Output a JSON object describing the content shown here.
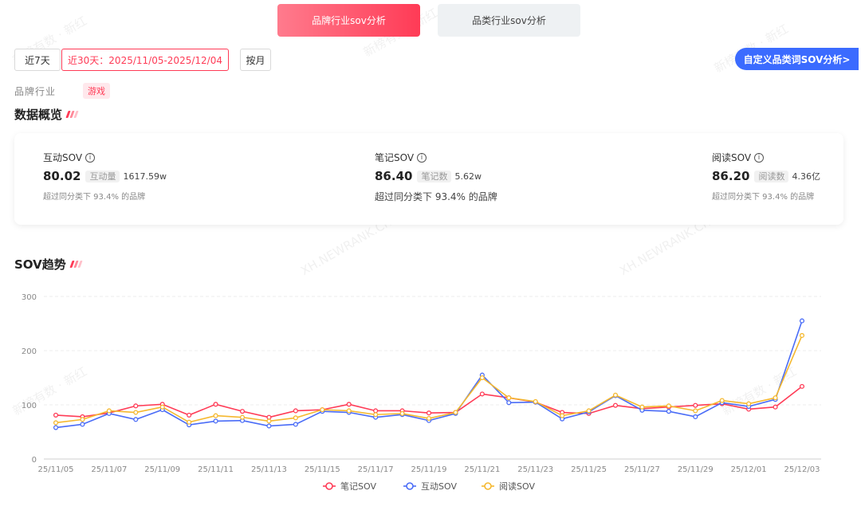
{
  "tabs": {
    "brand": "品牌行业sov分析",
    "category": "品类行业sov分析"
  },
  "date_filters": {
    "last7": "近7天",
    "last30": "近30天：2025/11/05-2025/12/04",
    "monthly": "按月"
  },
  "custom_sov_button": "自定义品类词SOV分析>",
  "industry": {
    "label": "品牌行业",
    "tag": "游戏"
  },
  "overview": {
    "title": "数据概览",
    "metrics": [
      {
        "label": "互动SOV",
        "value": "80.02",
        "chip": "互动量",
        "amount": "1617.59w",
        "note": "超过同分类下 93.4% 的品牌"
      },
      {
        "label": "笔记SOV",
        "value": "86.40",
        "chip": "笔记数",
        "amount": "5.62w",
        "note": "超过同分类下 93.4% 的品牌"
      },
      {
        "label": "阅读SOV",
        "value": "86.20",
        "chip": "阅读数",
        "amount": "4.36亿",
        "note": "超过同分类下 93.4% 的品牌"
      }
    ]
  },
  "trend": {
    "title": "SOV趋势"
  },
  "watermarks": [
    "新榜有数 · 新红",
    "XH.NEWRANK.CN"
  ],
  "colors": {
    "note": "#ff3b56",
    "interaction": "#4a6cf7",
    "read": "#f5b82e",
    "accent": "#ff3b56",
    "custom_button": "#3b6bff"
  },
  "chart_data": {
    "type": "line",
    "x": [
      "25/11/05",
      "25/11/06",
      "25/11/07",
      "25/11/08",
      "25/11/09",
      "25/11/10",
      "25/11/11",
      "25/11/12",
      "25/11/13",
      "25/11/14",
      "25/11/15",
      "25/11/16",
      "25/11/17",
      "25/11/18",
      "25/11/19",
      "25/11/20",
      "25/11/21",
      "25/11/22",
      "25/11/23",
      "25/11/24",
      "25/11/25",
      "25/11/26",
      "25/11/27",
      "25/11/28",
      "25/11/29",
      "25/11/30",
      "25/12/01",
      "25/12/02",
      "25/12/03"
    ],
    "x_tick_labels": [
      "25/11/05",
      "25/11/07",
      "25/11/09",
      "25/11/11",
      "25/11/13",
      "25/11/15",
      "25/11/17",
      "25/11/19",
      "25/11/21",
      "25/11/23",
      "25/11/25",
      "25/11/27",
      "25/11/29",
      "25/12/01",
      "25/12/03"
    ],
    "y_ticks": [
      0,
      100,
      200,
      300
    ],
    "ylim": [
      0,
      300
    ],
    "grid": true,
    "legend_position": "bottom",
    "series": [
      {
        "name": "笔记SOV",
        "color": "#ff3b56",
        "values": [
          81,
          78,
          85,
          98,
          101,
          81,
          101,
          88,
          77,
          89,
          91,
          101,
          89,
          89,
          85,
          86,
          120,
          113,
          105,
          86,
          84,
          99,
          93,
          96,
          99,
          102,
          92,
          96,
          134
        ]
      },
      {
        "name": "互动SOV",
        "color": "#4a6cf7",
        "values": [
          58,
          64,
          84,
          73,
          91,
          63,
          70,
          71,
          61,
          64,
          88,
          86,
          77,
          82,
          71,
          84,
          155,
          104,
          105,
          74,
          87,
          117,
          90,
          88,
          78,
          104,
          97,
          110,
          255
        ]
      },
      {
        "name": "阅读SOV",
        "color": "#f5b82e",
        "values": [
          67,
          73,
          89,
          86,
          96,
          68,
          80,
          77,
          70,
          76,
          91,
          89,
          82,
          84,
          75,
          86,
          150,
          113,
          106,
          80,
          89,
          118,
          96,
          98,
          89,
          108,
          102,
          113,
          228
        ]
      }
    ]
  }
}
